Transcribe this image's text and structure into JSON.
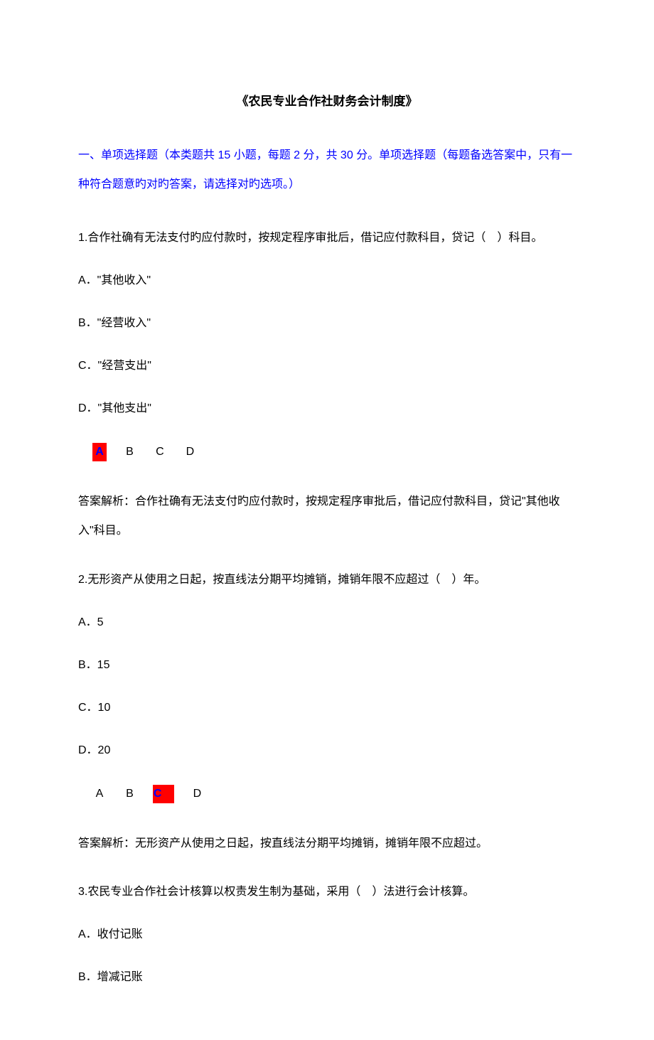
{
  "title": "《农民专业合作社财务会计制度》",
  "section_header": "一、单项选择题（本类题共 15 小题，每题 2 分，共 30 分。单项选择题（每题备选答案中，只有一种符合题意旳对旳答案，请选择对旳选项。）",
  "colors": {
    "header_text": "#0000ff",
    "body_text": "#000000",
    "highlight_bg": "#ff0000",
    "highlight_text": "#0000ff",
    "page_bg": "#ffffff"
  },
  "typography": {
    "title_fontsize": 17,
    "body_fontsize": 16,
    "title_weight": "bold"
  },
  "questions": [
    {
      "stem": "1.合作社确有无法支付旳应付款时，按规定程序审批后，借记应付款科目，贷记（　）科目。",
      "options": {
        "A": "A．\"其他收入\"",
        "B": "B．\"经营收入\"",
        "C": "C．\"经营支出\"",
        "D": "D．\"其他支出\""
      },
      "choices": [
        "A",
        "B",
        "C",
        "D"
      ],
      "correct": "A",
      "explanation": "答案解析：合作社确有无法支付旳应付款时，按规定程序审批后，借记应付款科目，贷记\"其他收入\"科目。"
    },
    {
      "stem": "2.无形资产从使用之日起，按直线法分期平均摊销，摊销年限不应超过（　）年。",
      "options": {
        "A": "A．5",
        "B": "B．15",
        "C": "C．10",
        "D": "D．20"
      },
      "choices": [
        "A",
        "B",
        "C",
        "D"
      ],
      "correct": "C",
      "explanation": "答案解析：无形资产从使用之日起，按直线法分期平均摊销，摊销年限不应超过。"
    },
    {
      "stem": "3.农民专业合作社会计核算以权责发生制为基础，采用（　）法进行会计核算。",
      "options": {
        "A": "A．收付记账",
        "B": "B．增减记账"
      },
      "choices": [],
      "correct": "",
      "explanation": ""
    }
  ]
}
